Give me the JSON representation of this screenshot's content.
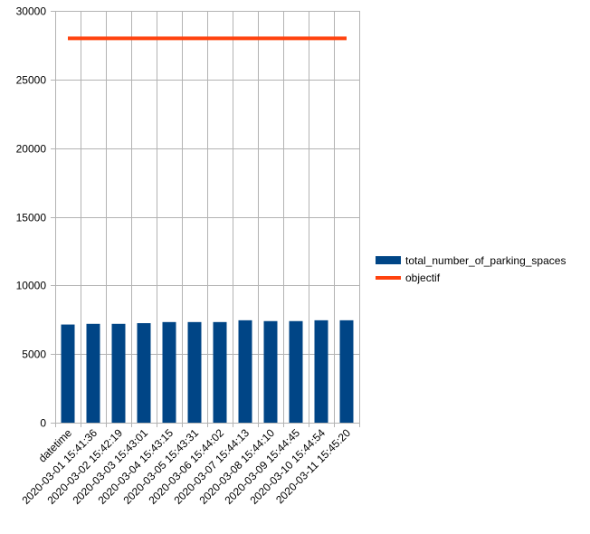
{
  "chart_data": {
    "type": "bar",
    "categories": [
      "datetime",
      "2020-03-01 15:41:36",
      "2020-03-02 15:42:19",
      "2020-03-03 15:43:01",
      "2020-03-04 15:43:15",
      "2020-03-05 15:43:31",
      "2020-03-06 15:44:02",
      "2020-03-07 15:44:13",
      "2020-03-08 15:44:10",
      "2020-03-09 15:44:45",
      "2020-03-10 15:44:54",
      "2020-03-11 15:45:20"
    ],
    "series": [
      {
        "name": "total_number_of_parking_spaces",
        "kind": "bar",
        "color": "#004586",
        "values": [
          7150,
          7200,
          7200,
          7250,
          7330,
          7330,
          7330,
          7460,
          7400,
          7400,
          7460,
          7460
        ]
      },
      {
        "name": "objectif",
        "kind": "line",
        "color": "#ff420e",
        "values": [
          28000,
          28000,
          28000,
          28000,
          28000,
          28000,
          28000,
          28000,
          28000,
          28000,
          28000,
          28000
        ]
      }
    ],
    "ylim": [
      0,
      30000
    ],
    "yticks": [
      "0",
      "5000",
      "10000",
      "15000",
      "20000",
      "25000",
      "30000"
    ],
    "grid": true,
    "legend_position": "right"
  }
}
